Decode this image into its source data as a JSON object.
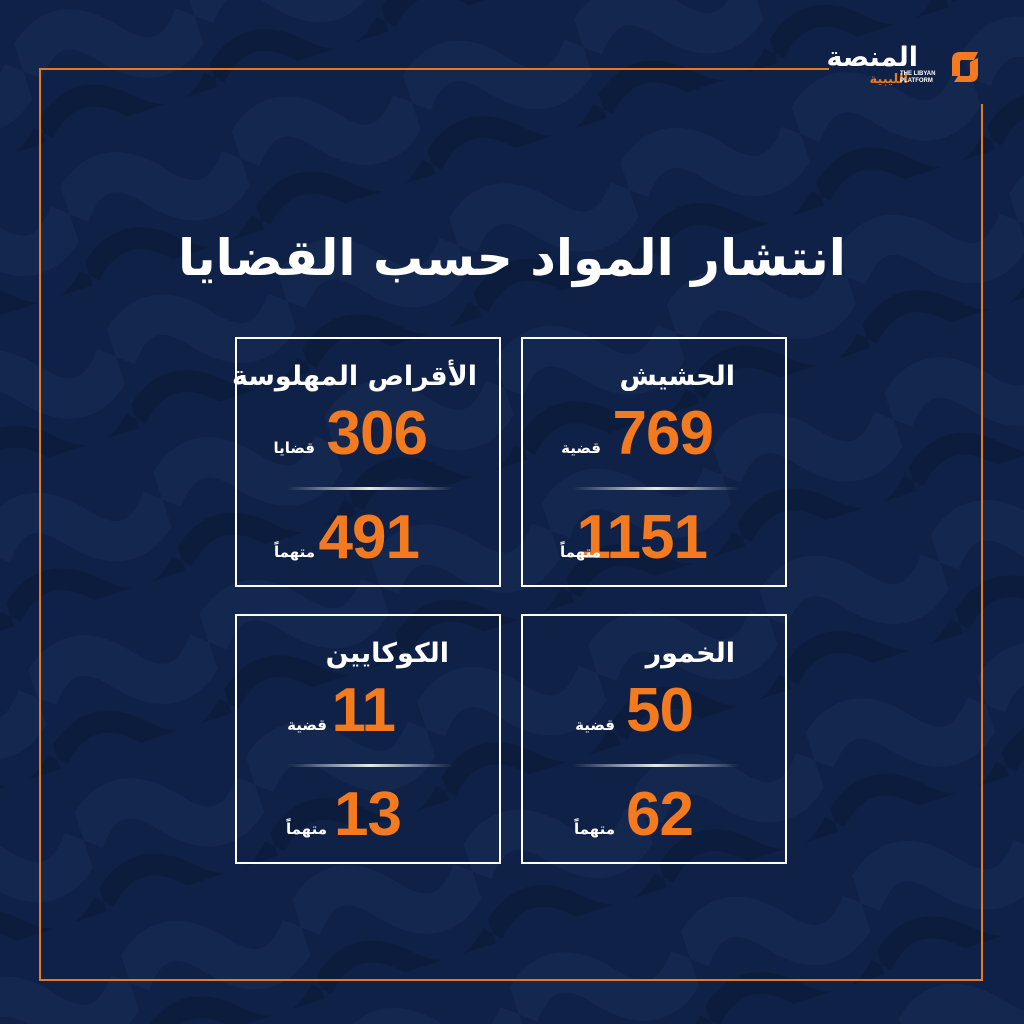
{
  "colors": {
    "background": "#0f2146",
    "accent": "#f47a20",
    "frame": "#e8791f",
    "text": "#ffffff"
  },
  "logo": {
    "arabic_main": "المنصة",
    "arabic_sub": "الليبية",
    "english": "THE LIBYAN\nPLATFORM",
    "icon": "platform-logo-mark"
  },
  "title": "انتشار المواد حسب القضايا",
  "cards": {
    "hashish": {
      "label": "الحشيش",
      "cases": "769",
      "cases_unit": "قضية",
      "accused": "1151",
      "accused_unit": "متهماً"
    },
    "pills": {
      "label": "الأقراص المهلوسة",
      "cases": "306",
      "cases_unit": "قضايا",
      "accused": "491",
      "accused_unit": "متهماً"
    },
    "alcohol": {
      "label": "الخمور",
      "cases": "50",
      "cases_unit": "قضية",
      "accused": "62",
      "accused_unit": "متهماً"
    },
    "cocaine": {
      "label": "الكوكايين",
      "cases": "11",
      "cases_unit": "قضية",
      "accused": "13",
      "accused_unit": "متهماً"
    }
  }
}
